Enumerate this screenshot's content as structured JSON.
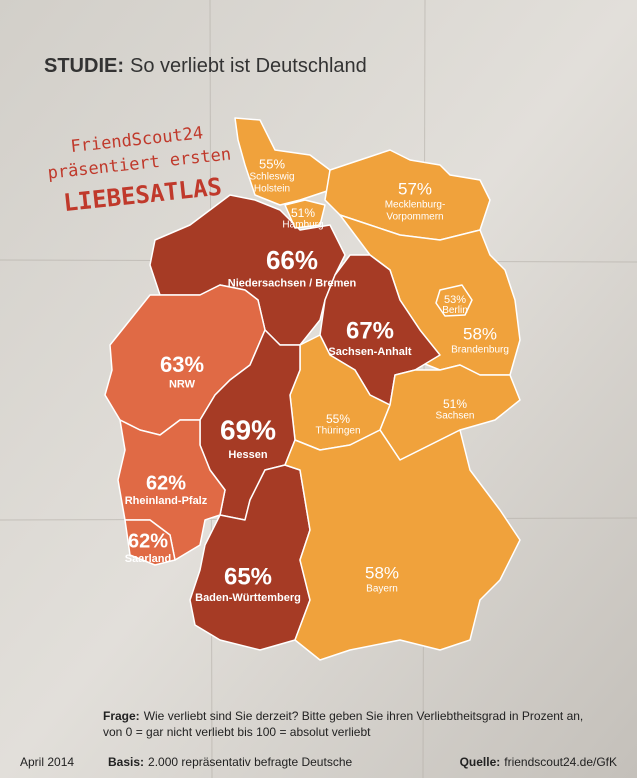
{
  "header": {
    "label": "STUDIE:",
    "title": "So verliebt ist Deutschland"
  },
  "promo": [
    "FriendScout24",
    "präsentiert ersten",
    "LIEBESATLAS"
  ],
  "regions": [
    {
      "value": "55%",
      "name": [
        "Schleswig",
        "Holstein"
      ],
      "color": "#f0a23c"
    },
    {
      "value": "51%",
      "name": [
        "Hamburg"
      ],
      "color": "#f0a23c"
    },
    {
      "value": "57%",
      "name": [
        "Mecklenburg-",
        "Vorpommern"
      ],
      "color": "#f0a23c"
    },
    {
      "value": "66%",
      "name": [
        "Niedersachsen / Bremen"
      ],
      "color": "#a63b25"
    },
    {
      "value": "53%",
      "name": [
        "Berlin"
      ],
      "color": "#f0a23c"
    },
    {
      "value": "58%",
      "name": [
        "Brandenburg"
      ],
      "color": "#f0a23c"
    },
    {
      "value": "67%",
      "name": [
        "Sachsen-Anhalt"
      ],
      "color": "#a63b25"
    },
    {
      "value": "63%",
      "name": [
        "NRW"
      ],
      "color": "#e06a45"
    },
    {
      "value": "55%",
      "name": [
        "Thüringen"
      ],
      "color": "#f0a23c"
    },
    {
      "value": "51%",
      "name": [
        "Sachsen"
      ],
      "color": "#f0a23c"
    },
    {
      "value": "69%",
      "name": [
        "Hessen"
      ],
      "color": "#a63b25"
    },
    {
      "value": "62%",
      "name": [
        "Rheinland-Pfalz"
      ],
      "color": "#e06a45"
    },
    {
      "value": "62%",
      "name": [
        "Saarland"
      ],
      "color": "#e06a45"
    },
    {
      "value": "65%",
      "name": [
        "Baden-Württemberg"
      ],
      "color": "#a63b25"
    },
    {
      "value": "58%",
      "name": [
        "Bayern"
      ],
      "color": "#f0a23c"
    }
  ],
  "question": {
    "label": "Frage:",
    "lines": [
      "Wie verliebt sind Sie derzeit? Bitte geben Sie ihren Verliebtheitsgrad in Prozent an,",
      "von 0 = gar nicht verliebt bis 100 = absolut verliebt"
    ]
  },
  "footer": {
    "date": "April 2014",
    "basis_label": "Basis:",
    "basis": "2.000 repräsentativ befragte Deutsche",
    "source_label": "Quelle:",
    "source": "friendscout24.de/GfK"
  }
}
